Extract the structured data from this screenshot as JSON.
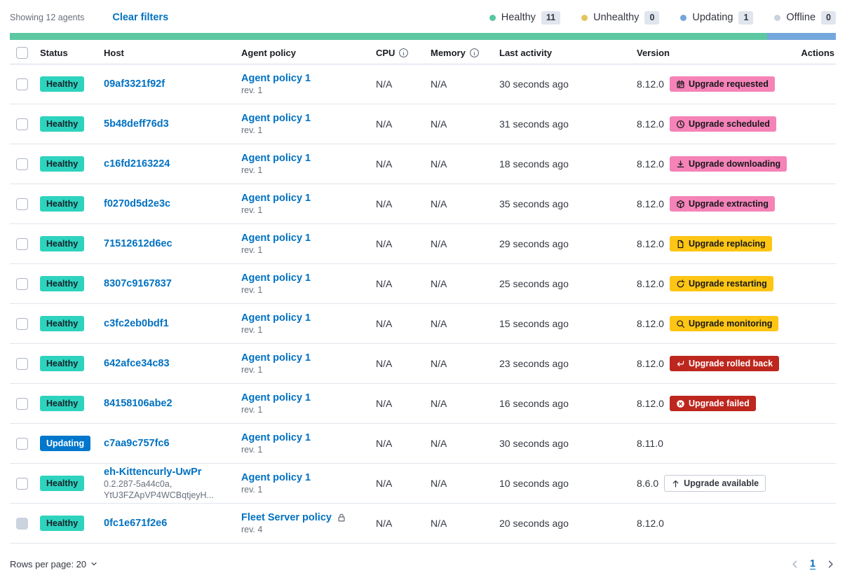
{
  "toolbar": {
    "showing": "Showing 12 agents",
    "clear_filters": "Clear filters",
    "legend": [
      {
        "label": "Healthy",
        "count": "11",
        "color": "#57C7A2"
      },
      {
        "label": "Unhealthy",
        "count": "0",
        "color": "#E5C55C"
      },
      {
        "label": "Updating",
        "count": "1",
        "color": "#73A6DB"
      },
      {
        "label": "Offline",
        "count": "0",
        "color": "#CBD3E0"
      }
    ]
  },
  "progress": {
    "segments": [
      {
        "color": "#5BC8A1",
        "fraction": 0.9167
      },
      {
        "color": "#74A7DC",
        "fraction": 0.0833
      }
    ]
  },
  "table": {
    "headers": {
      "status": "Status",
      "host": "Host",
      "policy": "Agent policy",
      "cpu": "CPU",
      "memory": "Memory",
      "last_activity": "Last activity",
      "version": "Version",
      "actions": "Actions"
    },
    "rows": [
      {
        "status": {
          "label": "Healthy",
          "variant": "healthy"
        },
        "host": {
          "name": "09af3321f92f",
          "sub": []
        },
        "policy": {
          "name": "Agent policy 1",
          "rev": "rev. 1",
          "locked": false
        },
        "cpu": "N/A",
        "memory": "N/A",
        "last_activity": "30 seconds ago",
        "version": "8.12.0",
        "upgrade": {
          "label": "Upgrade requested",
          "icon": "calendar",
          "variant": "pink"
        },
        "version_info": true,
        "checkbox_disabled": false
      },
      {
        "status": {
          "label": "Healthy",
          "variant": "healthy"
        },
        "host": {
          "name": "5b48deff76d3",
          "sub": []
        },
        "policy": {
          "name": "Agent policy 1",
          "rev": "rev. 1",
          "locked": false
        },
        "cpu": "N/A",
        "memory": "N/A",
        "last_activity": "31 seconds ago",
        "version": "8.12.0",
        "upgrade": {
          "label": "Upgrade scheduled",
          "icon": "clock",
          "variant": "pink"
        },
        "version_info": true,
        "checkbox_disabled": false
      },
      {
        "status": {
          "label": "Healthy",
          "variant": "healthy"
        },
        "host": {
          "name": "c16fd2163224",
          "sub": []
        },
        "policy": {
          "name": "Agent policy 1",
          "rev": "rev. 1",
          "locked": false
        },
        "cpu": "N/A",
        "memory": "N/A",
        "last_activity": "18 seconds ago",
        "version": "8.12.0",
        "upgrade": {
          "label": "Upgrade downloading",
          "icon": "download",
          "variant": "pink"
        },
        "version_info": true,
        "checkbox_disabled": false
      },
      {
        "status": {
          "label": "Healthy",
          "variant": "healthy"
        },
        "host": {
          "name": "f0270d5d2e3c",
          "sub": []
        },
        "policy": {
          "name": "Agent policy 1",
          "rev": "rev. 1",
          "locked": false
        },
        "cpu": "N/A",
        "memory": "N/A",
        "last_activity": "35 seconds ago",
        "version": "8.12.0",
        "upgrade": {
          "label": "Upgrade extracting",
          "icon": "package",
          "variant": "pink"
        },
        "version_info": true,
        "checkbox_disabled": false
      },
      {
        "status": {
          "label": "Healthy",
          "variant": "healthy"
        },
        "host": {
          "name": "71512612d6ec",
          "sub": []
        },
        "policy": {
          "name": "Agent policy 1",
          "rev": "rev. 1",
          "locked": false
        },
        "cpu": "N/A",
        "memory": "N/A",
        "last_activity": "29 seconds ago",
        "version": "8.12.0",
        "upgrade": {
          "label": "Upgrade replacing",
          "icon": "document",
          "variant": "yellow"
        },
        "version_info": true,
        "checkbox_disabled": false
      },
      {
        "status": {
          "label": "Healthy",
          "variant": "healthy"
        },
        "host": {
          "name": "8307c9167837",
          "sub": []
        },
        "policy": {
          "name": "Agent policy 1",
          "rev": "rev. 1",
          "locked": false
        },
        "cpu": "N/A",
        "memory": "N/A",
        "last_activity": "25 seconds ago",
        "version": "8.12.0",
        "upgrade": {
          "label": "Upgrade restarting",
          "icon": "refresh",
          "variant": "yellow"
        },
        "version_info": true,
        "checkbox_disabled": false
      },
      {
        "status": {
          "label": "Healthy",
          "variant": "healthy"
        },
        "host": {
          "name": "c3fc2eb0bdf1",
          "sub": []
        },
        "policy": {
          "name": "Agent policy 1",
          "rev": "rev. 1",
          "locked": false
        },
        "cpu": "N/A",
        "memory": "N/A",
        "last_activity": "15 seconds ago",
        "version": "8.12.0",
        "upgrade": {
          "label": "Upgrade monitoring",
          "icon": "inspect",
          "variant": "yellow"
        },
        "version_info": true,
        "checkbox_disabled": false
      },
      {
        "status": {
          "label": "Healthy",
          "variant": "healthy"
        },
        "host": {
          "name": "642afce34c83",
          "sub": []
        },
        "policy": {
          "name": "Agent policy 1",
          "rev": "rev. 1",
          "locked": false
        },
        "cpu": "N/A",
        "memory": "N/A",
        "last_activity": "23 seconds ago",
        "version": "8.12.0",
        "upgrade": {
          "label": "Upgrade rolled back",
          "icon": "return",
          "variant": "red"
        },
        "version_info": true,
        "checkbox_disabled": false
      },
      {
        "status": {
          "label": "Healthy",
          "variant": "healthy"
        },
        "host": {
          "name": "84158106abe2",
          "sub": []
        },
        "policy": {
          "name": "Agent policy 1",
          "rev": "rev. 1",
          "locked": false
        },
        "cpu": "N/A",
        "memory": "N/A",
        "last_activity": "16 seconds ago",
        "version": "8.12.0",
        "upgrade": {
          "label": "Upgrade failed",
          "icon": "error",
          "variant": "red"
        },
        "version_info": true,
        "checkbox_disabled": false
      },
      {
        "status": {
          "label": "Updating",
          "variant": "updating"
        },
        "host": {
          "name": "c7aa9c757fc6",
          "sub": []
        },
        "policy": {
          "name": "Agent policy 1",
          "rev": "rev. 1",
          "locked": false
        },
        "cpu": "N/A",
        "memory": "N/A",
        "last_activity": "30 seconds ago",
        "version": "8.11.0",
        "upgrade": null,
        "version_info": true,
        "checkbox_disabled": false
      },
      {
        "status": {
          "label": "Healthy",
          "variant": "healthy"
        },
        "host": {
          "name": "eh-Kittencurly-UwPr",
          "sub": [
            "0.2.287-5a44c0a,",
            "YtU3FZApVP4WCBqtjeyH..."
          ]
        },
        "policy": {
          "name": "Agent policy 1",
          "rev": "rev. 1",
          "locked": false
        },
        "cpu": "N/A",
        "memory": "N/A",
        "last_activity": "10 seconds ago",
        "version": "8.6.0",
        "upgrade": {
          "label": "Upgrade available",
          "icon": "up",
          "variant": "outline"
        },
        "version_info": false,
        "checkbox_disabled": false
      },
      {
        "status": {
          "label": "Healthy",
          "variant": "healthy"
        },
        "host": {
          "name": "0fc1e671f2e6",
          "sub": []
        },
        "policy": {
          "name": "Fleet Server policy",
          "rev": "rev. 4",
          "locked": true
        },
        "cpu": "N/A",
        "memory": "N/A",
        "last_activity": "20 seconds ago",
        "version": "8.12.0",
        "upgrade": null,
        "version_info": false,
        "checkbox_disabled": true
      }
    ]
  },
  "footer": {
    "rows_per_page_label": "Rows per page: 20",
    "page": "1"
  }
}
